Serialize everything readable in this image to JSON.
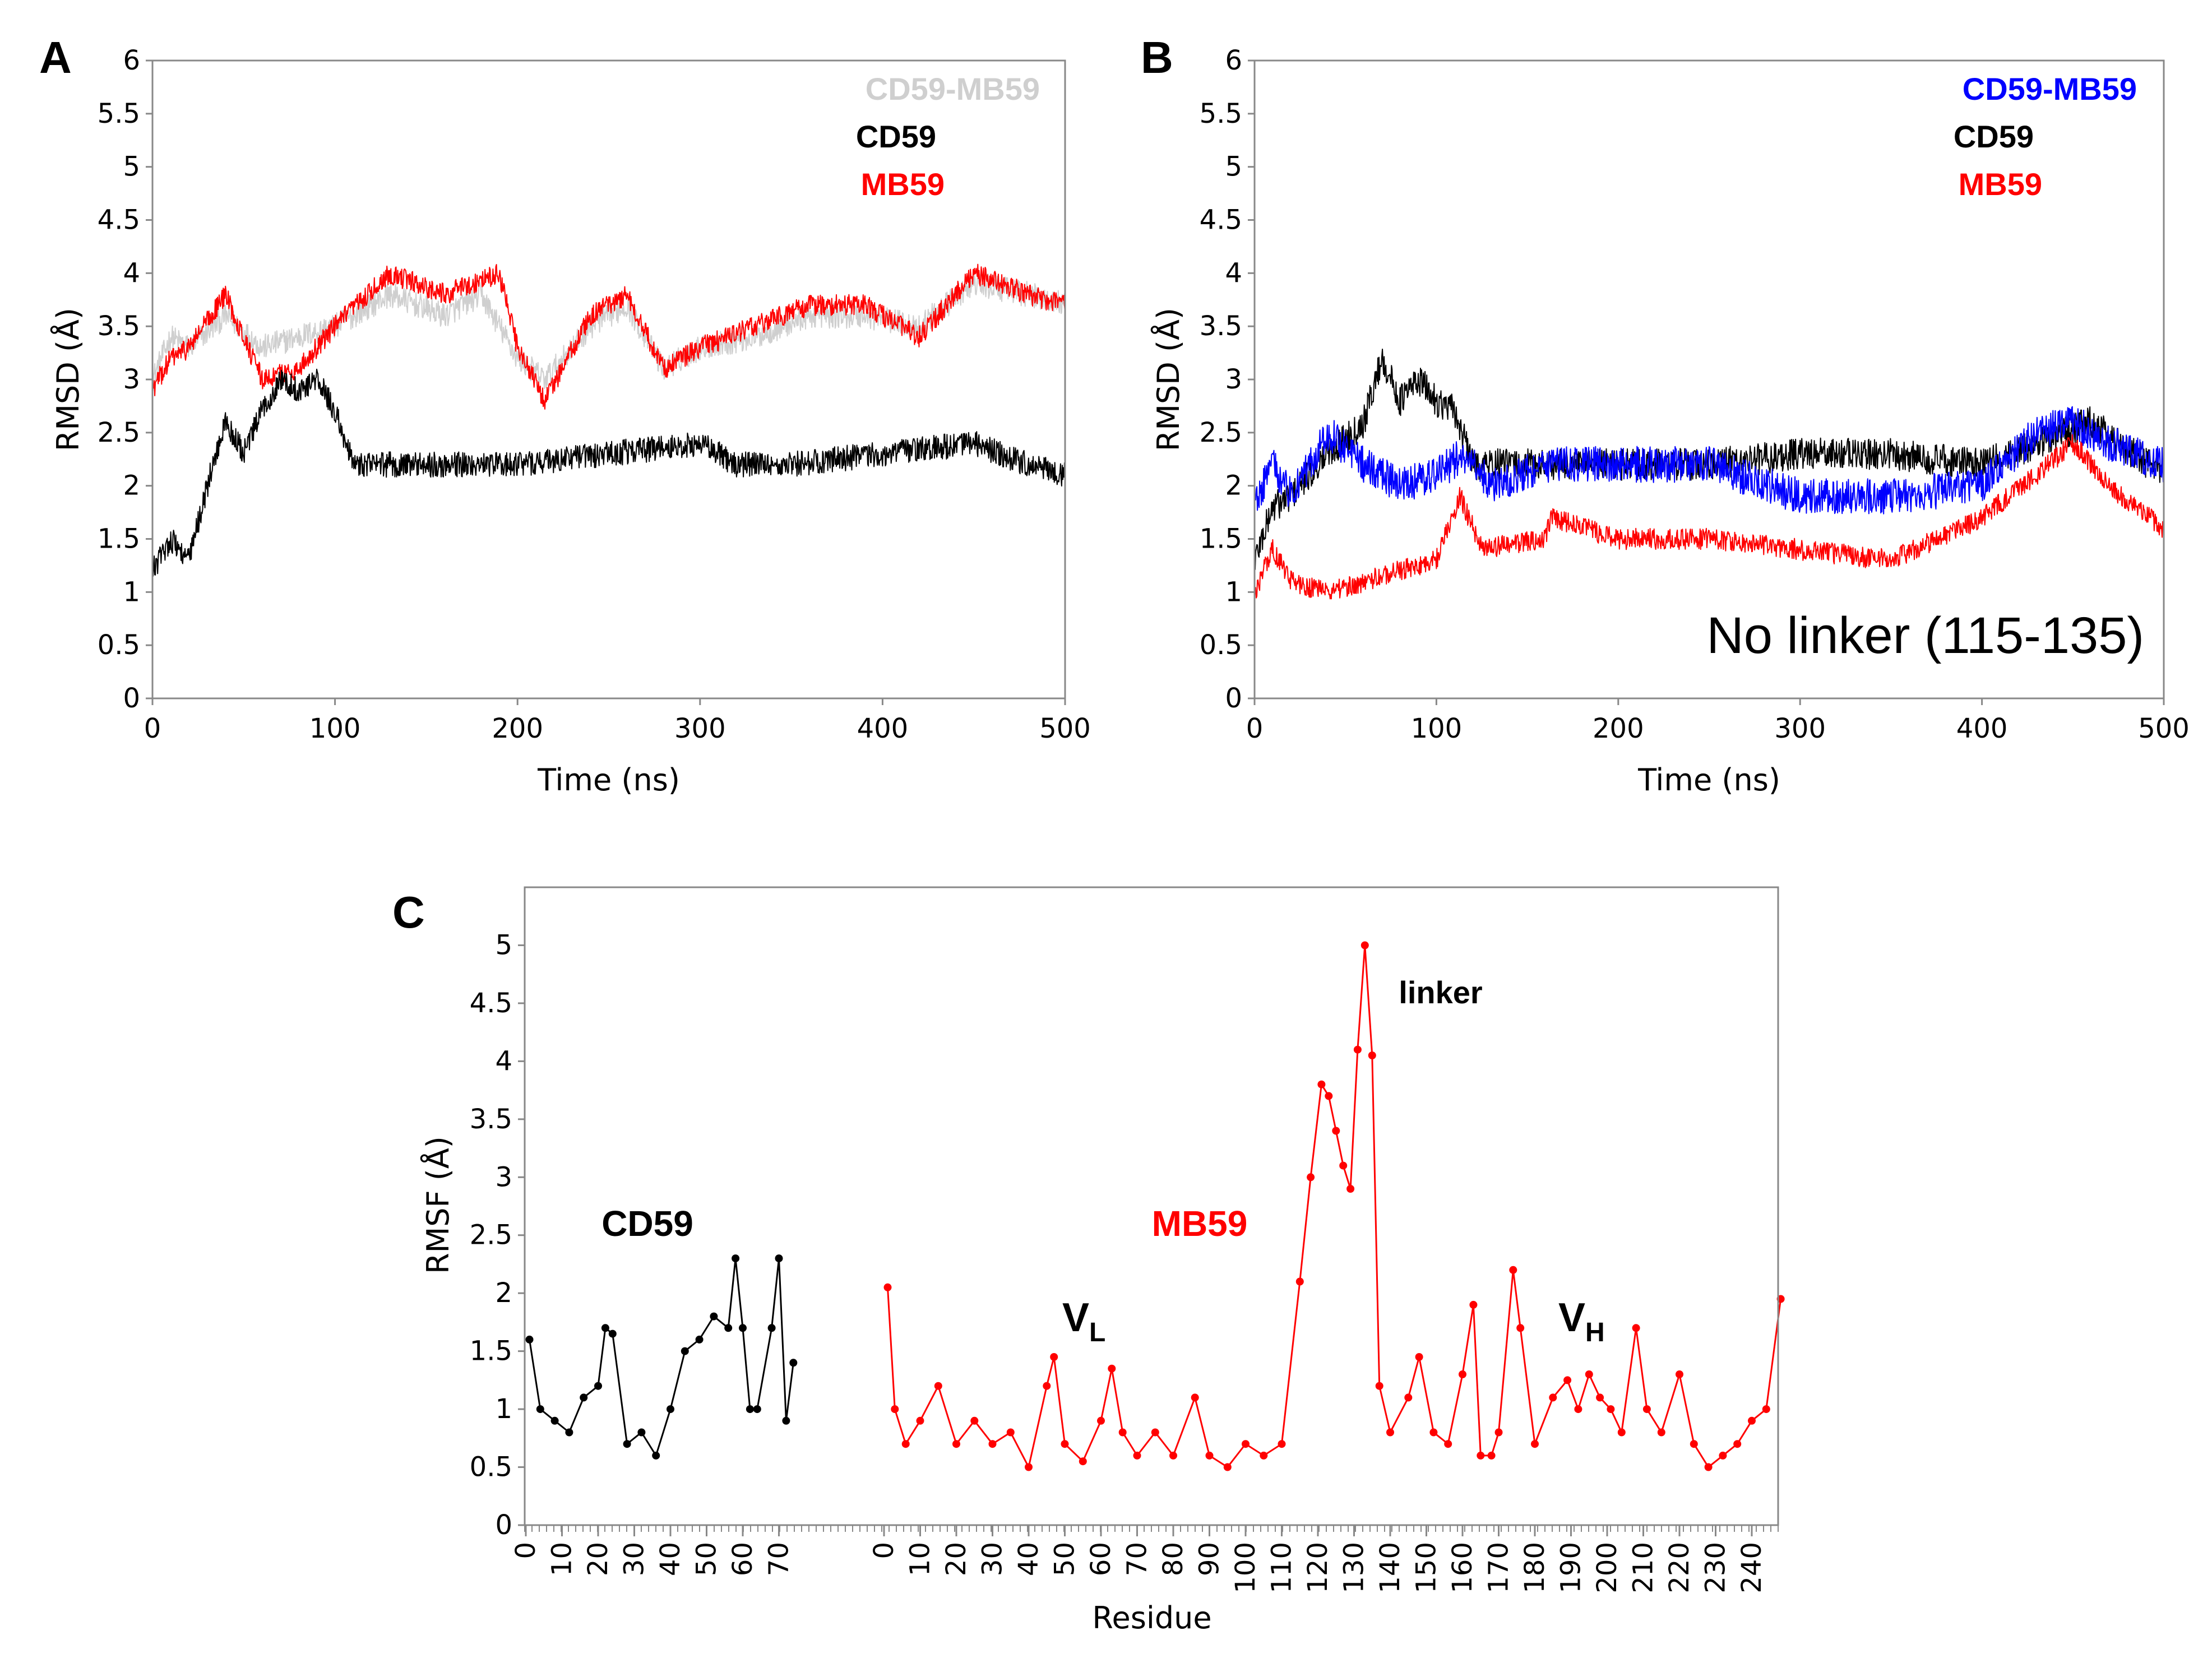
{
  "figure": {
    "colors": {
      "gray": "#cfcfcf",
      "black": "#000000",
      "red": "#ff0000",
      "blue": "#0000ff"
    }
  },
  "chart_data": [
    {
      "panel": "A",
      "type": "line",
      "xlabel": "Time (ns)",
      "ylabel": "RMSD (Å)",
      "xlim": [
        0,
        500
      ],
      "ylim": [
        0,
        6
      ],
      "xticks": [
        0,
        100,
        200,
        300,
        400,
        500
      ],
      "yticks": [
        0,
        0.5,
        1,
        1.5,
        2,
        2.5,
        3,
        3.5,
        4,
        4.5,
        5,
        5.5,
        6
      ],
      "ytick_labels": [
        "0",
        "0.5",
        "1",
        "1.5",
        "2",
        "2.5",
        "3",
        "3.5",
        "4",
        "4.5",
        "5",
        "5.5",
        "6"
      ],
      "legend": [
        "CD59-MB59",
        "CD59",
        "MB59"
      ],
      "series": [
        {
          "name": "CD59-MB59",
          "color": "#cfcfcf",
          "noise": 0.12,
          "x": [
            0,
            10,
            20,
            40,
            60,
            80,
            100,
            130,
            160,
            180,
            200,
            215,
            240,
            260,
            280,
            300,
            330,
            360,
            390,
            420,
            450,
            480,
            500
          ],
          "y": [
            3.0,
            3.4,
            3.3,
            3.6,
            3.3,
            3.4,
            3.5,
            3.8,
            3.6,
            3.8,
            3.2,
            3.0,
            3.5,
            3.7,
            3.1,
            3.3,
            3.4,
            3.6,
            3.6,
            3.5,
            3.9,
            3.8,
            3.7
          ]
        },
        {
          "name": "MB59",
          "color": "#ff0000",
          "noise": 0.1,
          "x": [
            0,
            10,
            20,
            40,
            60,
            80,
            100,
            130,
            160,
            190,
            200,
            215,
            240,
            260,
            280,
            300,
            330,
            360,
            390,
            420,
            450,
            480,
            500
          ],
          "y": [
            2.9,
            3.2,
            3.3,
            3.8,
            3.0,
            3.1,
            3.5,
            4.0,
            3.8,
            4.0,
            3.3,
            2.8,
            3.6,
            3.8,
            3.1,
            3.3,
            3.5,
            3.7,
            3.7,
            3.4,
            4.0,
            3.8,
            3.7
          ]
        },
        {
          "name": "CD59",
          "color": "#000000",
          "noise": 0.12,
          "x": [
            0,
            10,
            20,
            30,
            40,
            50,
            60,
            70,
            80,
            90,
            100,
            110,
            150,
            200,
            250,
            300,
            320,
            350,
            400,
            450,
            480,
            500
          ],
          "y": [
            1.2,
            1.5,
            1.3,
            2.0,
            2.6,
            2.3,
            2.7,
            3.0,
            2.9,
            3.0,
            2.7,
            2.2,
            2.2,
            2.2,
            2.3,
            2.4,
            2.2,
            2.2,
            2.3,
            2.4,
            2.2,
            2.1
          ]
        }
      ]
    },
    {
      "panel": "B",
      "type": "line",
      "xlabel": "Time (ns)",
      "ylabel": "RMSD (Å)",
      "xlim": [
        0,
        500
      ],
      "ylim": [
        0,
        6
      ],
      "xticks": [
        0,
        100,
        200,
        300,
        400,
        500
      ],
      "yticks": [
        0,
        0.5,
        1,
        1.5,
        2,
        2.5,
        3,
        3.5,
        4,
        4.5,
        5,
        5.5,
        6
      ],
      "ytick_labels": [
        "0",
        "0.5",
        "1",
        "1.5",
        "2",
        "2.5",
        "3",
        "3.5",
        "4",
        "4.5",
        "5",
        "5.5",
        "6"
      ],
      "legend": [
        "CD59-MB59",
        "CD59",
        "MB59"
      ],
      "annotation": "No linker (115-135)",
      "series": [
        {
          "name": "CD59",
          "color": "#000000",
          "noise": 0.15,
          "x": [
            0,
            10,
            20,
            40,
            60,
            70,
            80,
            90,
            100,
            110,
            120,
            200,
            250,
            300,
            350,
            400,
            430,
            460,
            500
          ],
          "y": [
            1.3,
            1.8,
            1.9,
            2.3,
            2.6,
            3.2,
            2.8,
            3.0,
            2.8,
            2.7,
            2.2,
            2.2,
            2.2,
            2.3,
            2.3,
            2.2,
            2.4,
            2.6,
            2.1
          ]
        },
        {
          "name": "CD59-MB59",
          "color": "#0000ff",
          "noise": 0.17,
          "x": [
            0,
            10,
            20,
            40,
            60,
            80,
            100,
            115,
            130,
            160,
            200,
            250,
            300,
            350,
            400,
            430,
            450,
            470,
            500
          ],
          "y": [
            1.8,
            2.2,
            1.9,
            2.5,
            2.2,
            2.0,
            2.1,
            2.3,
            2.0,
            2.2,
            2.2,
            2.2,
            1.9,
            1.9,
            2.0,
            2.5,
            2.6,
            2.4,
            2.2
          ]
        },
        {
          "name": "MB59",
          "color": "#ff0000",
          "noise": 0.1,
          "x": [
            0,
            10,
            20,
            40,
            60,
            80,
            100,
            113,
            125,
            160,
            163,
            200,
            250,
            300,
            350,
            400,
            430,
            450,
            470,
            500
          ],
          "y": [
            1.0,
            1.4,
            1.1,
            1.0,
            1.1,
            1.2,
            1.3,
            1.9,
            1.4,
            1.5,
            1.7,
            1.5,
            1.5,
            1.4,
            1.3,
            1.7,
            2.1,
            2.4,
            2.0,
            1.6
          ]
        }
      ]
    },
    {
      "panel": "C",
      "type": "line",
      "xlabel": "Residue",
      "ylabel": "RMSF (Å)",
      "ylim": [
        0,
        5.5
      ],
      "yticks": [
        0,
        0.5,
        1,
        1.5,
        2,
        2.5,
        3,
        3.5,
        4,
        4.5,
        5
      ],
      "ytick_labels": [
        "0",
        "0.5",
        "1",
        "1.5",
        "2",
        "2.5",
        "3",
        "3.5",
        "4",
        "4.5",
        "5"
      ],
      "xticks_cd59": [
        0,
        10,
        20,
        30,
        40,
        50,
        60,
        70
      ],
      "xtick_labels_cd59": [
        "0",
        "10",
        "20",
        "30",
        "40",
        "50",
        "60",
        "70"
      ],
      "xticks_mb59": [
        0,
        10,
        20,
        30,
        40,
        50,
        60,
        70,
        80,
        90,
        100,
        110,
        120,
        130,
        140,
        150,
        160,
        170,
        180,
        190,
        200,
        210,
        220,
        230,
        240
      ],
      "xtick_labels_mb59": [
        "0",
        "10",
        "20",
        "30",
        "40",
        "50",
        "60",
        "70",
        "80",
        "90",
        "100",
        "110",
        "120",
        "130",
        "140",
        "150",
        "160",
        "170",
        "180",
        "190",
        "200",
        "210",
        "220",
        "230",
        "240"
      ],
      "labels": {
        "cd59": "CD59",
        "mb59": "MB59",
        "linker": "linker",
        "vl_main": "V",
        "vl_sub": "L",
        "vh_main": "V",
        "vh_sub": "H"
      },
      "series": [
        {
          "name": "CD59",
          "color": "#000000",
          "x": [
            1,
            4,
            8,
            12,
            16,
            20,
            22,
            24,
            28,
            32,
            36,
            40,
            44,
            48,
            52,
            56,
            58,
            60,
            62,
            64,
            68,
            70,
            72,
            74
          ],
          "y": [
            1.6,
            1.0,
            0.9,
            0.8,
            1.1,
            1.2,
            1.7,
            1.65,
            0.7,
            0.8,
            0.6,
            1.0,
            1.5,
            1.6,
            1.8,
            1.7,
            2.3,
            1.7,
            1.0,
            1.0,
            1.7,
            2.3,
            0.9,
            1.4
          ]
        },
        {
          "name": "MB59",
          "color": "#ff0000",
          "x": [
            1,
            3,
            6,
            10,
            15,
            20,
            25,
            30,
            35,
            40,
            45,
            47,
            50,
            55,
            60,
            63,
            66,
            70,
            75,
            80,
            86,
            90,
            95,
            100,
            105,
            110,
            115,
            118,
            121,
            123,
            125,
            127,
            129,
            131,
            133,
            135,
            137,
            140,
            145,
            148,
            152,
            156,
            160,
            163,
            165,
            168,
            170,
            174,
            176,
            180,
            185,
            189,
            192,
            195,
            198,
            201,
            204,
            208,
            211,
            215,
            220,
            224,
            228,
            232,
            236,
            240,
            244,
            248
          ],
          "y": [
            2.05,
            1.0,
            0.7,
            0.9,
            1.2,
            0.7,
            0.9,
            0.7,
            0.8,
            0.5,
            1.2,
            1.45,
            0.7,
            0.55,
            0.9,
            1.35,
            0.8,
            0.6,
            0.8,
            0.6,
            1.1,
            0.6,
            0.5,
            0.7,
            0.6,
            0.7,
            2.1,
            3.0,
            3.8,
            3.7,
            3.4,
            3.1,
            2.9,
            4.1,
            5.0,
            4.05,
            1.2,
            0.8,
            1.1,
            1.45,
            0.8,
            0.7,
            1.3,
            1.9,
            0.6,
            0.6,
            0.8,
            2.2,
            1.7,
            0.7,
            1.1,
            1.25,
            1.0,
            1.3,
            1.1,
            1.0,
            0.8,
            1.7,
            1.0,
            0.8,
            1.3,
            0.7,
            0.5,
            0.6,
            0.7,
            0.9,
            1.0,
            1.95
          ]
        }
      ]
    }
  ]
}
